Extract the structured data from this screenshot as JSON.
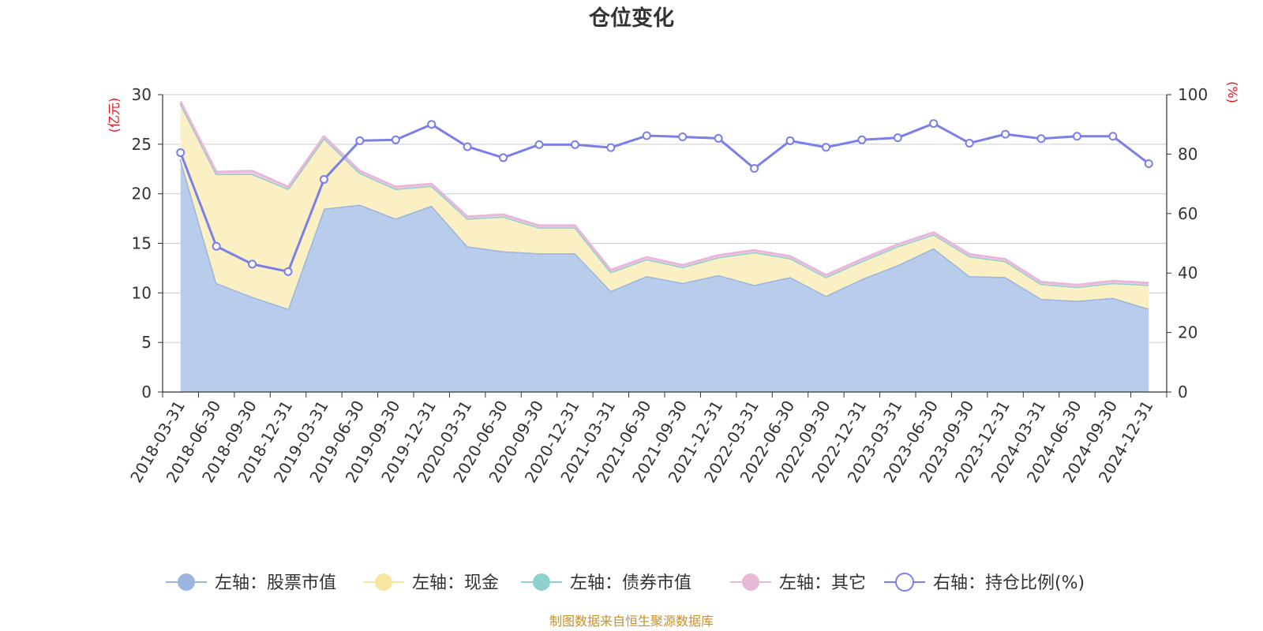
{
  "chart_data": {
    "type": "area",
    "title": "仓位变化",
    "left_unit": "(亿元)",
    "right_unit": "(%)",
    "source": "制图数据来自恒生聚源数据库",
    "categories": [
      "2018-03-31",
      "2018-06-30",
      "2018-09-30",
      "2018-12-31",
      "2019-03-31",
      "2019-06-30",
      "2019-09-30",
      "2019-12-31",
      "2020-03-31",
      "2020-06-30",
      "2020-09-30",
      "2020-12-31",
      "2021-03-31",
      "2021-06-30",
      "2021-09-30",
      "2021-12-31",
      "2022-03-31",
      "2022-06-30",
      "2022-09-30",
      "2022-12-31",
      "2023-03-31",
      "2023-06-30",
      "2023-09-30",
      "2023-12-31",
      "2024-03-31",
      "2024-06-30",
      "2024-09-30",
      "2024-12-31"
    ],
    "left_axis": {
      "min": 0,
      "max": 30,
      "ticks": [
        "0",
        "5",
        "10",
        "15",
        "20",
        "25",
        "30"
      ]
    },
    "right_axis": {
      "min": 0,
      "max": 100,
      "ticks": [
        "0",
        "20",
        "40",
        "60",
        "80",
        "100"
      ]
    },
    "series": [
      {
        "name": "左轴：股票市值",
        "axis": "left",
        "color": "#9bb5e0",
        "fill": "#b8cceb",
        "values": [
          23.5,
          11.0,
          9.6,
          8.4,
          18.5,
          18.9,
          17.5,
          18.8,
          14.7,
          14.2,
          14.0,
          14.0,
          10.2,
          11.7,
          11.0,
          11.8,
          10.8,
          11.6,
          9.7,
          11.4,
          12.8,
          14.5,
          11.7,
          11.6,
          9.4,
          9.2,
          9.5,
          8.4
        ]
      },
      {
        "name": "左轴：现金",
        "axis": "left",
        "color": "#f7e6a0",
        "fill": "#fbefc4",
        "values": [
          5.6,
          11.0,
          12.4,
          12.1,
          7.1,
          3.2,
          3.0,
          2.0,
          2.8,
          3.5,
          2.6,
          2.6,
          1.9,
          1.7,
          1.6,
          1.8,
          3.3,
          1.9,
          1.9,
          1.8,
          1.9,
          1.4,
          2.0,
          1.6,
          1.5,
          1.4,
          1.5,
          2.4
        ]
      },
      {
        "name": "左轴：债券市值",
        "axis": "left",
        "color": "#8fd0cf",
        "fill": "#a9dedd",
        "values": [
          0,
          0,
          0,
          0,
          0,
          0,
          0,
          0,
          0,
          0,
          0,
          0,
          0,
          0,
          0,
          0,
          0,
          0,
          0,
          0,
          0,
          0,
          0,
          0,
          0,
          0,
          0,
          0
        ]
      },
      {
        "name": "左轴：其它",
        "axis": "left",
        "color": "#e8b8d9",
        "fill": "#f1cfe6",
        "values": [
          0.2,
          0.2,
          0.3,
          0.2,
          0.2,
          0.2,
          0.2,
          0.2,
          0.2,
          0.2,
          0.2,
          0.2,
          0.2,
          0.2,
          0.2,
          0.2,
          0.2,
          0.2,
          0.2,
          0.2,
          0.2,
          0.2,
          0.2,
          0.2,
          0.2,
          0.2,
          0.2,
          0.2
        ]
      },
      {
        "name": "右轴：持仓比例(%)",
        "axis": "right",
        "color": "#7b7fe8",
        "type": "line",
        "values": [
          80.5,
          49.0,
          43.0,
          40.5,
          71.5,
          84.5,
          84.8,
          90.0,
          82.5,
          78.8,
          83.2,
          83.2,
          82.2,
          86.2,
          85.8,
          85.3,
          75.2,
          84.5,
          82.3,
          84.8,
          85.5,
          90.3,
          83.7,
          86.7,
          85.2,
          86.0,
          86.0,
          76.8
        ]
      }
    ]
  }
}
